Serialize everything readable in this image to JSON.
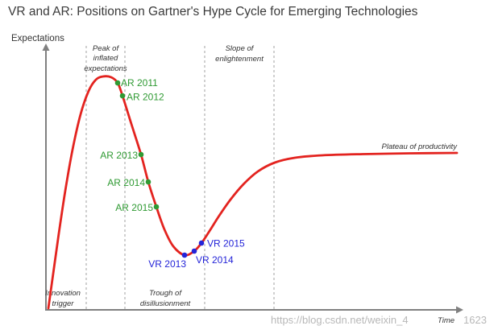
{
  "title": "VR and AR: Positions on Gartner's Hype Cycle for Emerging Technologies",
  "axes": {
    "y_label": "Expectations",
    "x_label": "Time"
  },
  "phases": {
    "innovation_trigger": [
      "Innovation",
      "trigger"
    ],
    "peak": [
      "Peak of",
      "inflated",
      "expectations"
    ],
    "trough": [
      "Trough of",
      "disillusionment"
    ],
    "slope": [
      "Slope of",
      "enlightenment"
    ],
    "plateau": [
      "Plateau of productivity"
    ]
  },
  "ar_points": [
    "AR 2011",
    "AR 2012",
    "AR 2013",
    "AR 2014",
    "AR 2015"
  ],
  "vr_points": [
    "VR 2013",
    "VR 2014",
    "VR 2015"
  ],
  "watermark": [
    "https://blog.csdn.net/weixin_4",
    "1623"
  ],
  "colors": {
    "background": "#ffffff",
    "title": "#3a3a3a",
    "text": "#333333",
    "axis": "#808080",
    "divider": "#a0a0a0",
    "curve": "#e3231f",
    "ar": "#2f9a33",
    "vr": "#2424d8",
    "watermark": "#b8b8b8"
  }
}
